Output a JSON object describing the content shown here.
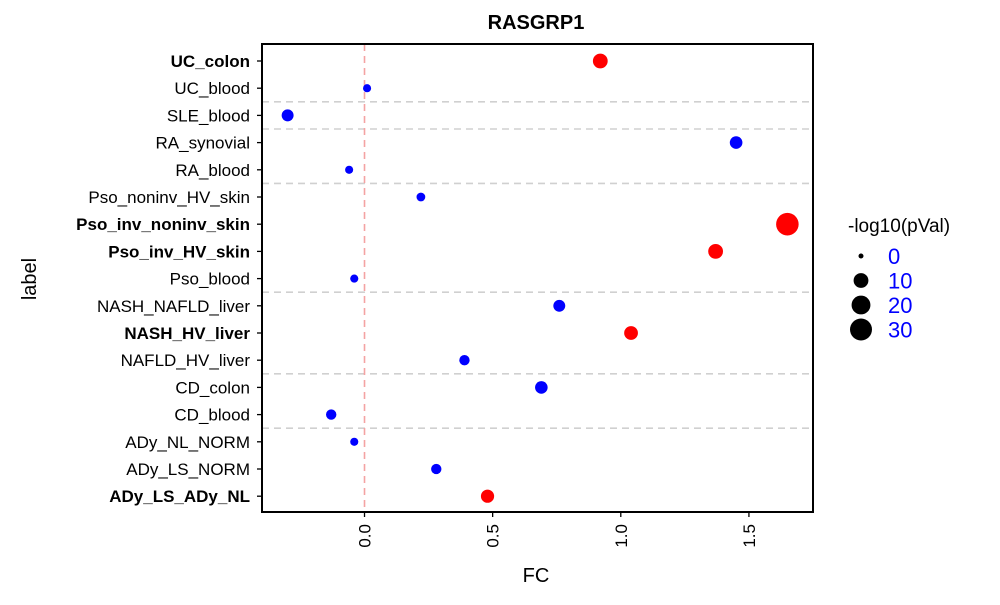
{
  "chart_data": {
    "type": "scatter",
    "title": "RASGRP1",
    "xlabel": "FC",
    "ylabel": "label",
    "xlim": [
      -0.4,
      1.75
    ],
    "x_ticks": [
      0.0,
      0.5,
      1.0,
      1.5
    ],
    "x_tick_labels": [
      "0.0",
      "0.5",
      "1.0",
      "1.5"
    ],
    "reference_line": {
      "x": 0,
      "color": "#f4a3a3",
      "style": "dashed"
    },
    "group_separators_after": [
      "UC_blood",
      "SLE_blood",
      "RA_blood",
      "Pso_blood",
      "NAFLD_HV_liver",
      "CD_blood"
    ],
    "colors": {
      "significant": "#ff0000",
      "not_significant": "#0000ff"
    },
    "legend": {
      "title": "-log10(pVal)",
      "placement": "right",
      "entries": [
        {
          "label": "0",
          "value": 0
        },
        {
          "label": "10",
          "value": 10
        },
        {
          "label": "20",
          "value": 20
        },
        {
          "label": "30",
          "value": 30
        }
      ]
    },
    "points": [
      {
        "label": "UC_colon",
        "fc": 0.92,
        "neglog10p": 10,
        "significant": true,
        "bold": true
      },
      {
        "label": "UC_blood",
        "fc": 0.01,
        "neglog10p": 1,
        "significant": false,
        "bold": false
      },
      {
        "label": "SLE_blood",
        "fc": -0.3,
        "neglog10p": 5,
        "significant": false,
        "bold": false
      },
      {
        "label": "RA_synovial",
        "fc": 1.45,
        "neglog10p": 6,
        "significant": false,
        "bold": false
      },
      {
        "label": "RA_blood",
        "fc": -0.06,
        "neglog10p": 1,
        "significant": false,
        "bold": false
      },
      {
        "label": "Pso_noninv_HV_skin",
        "fc": 0.22,
        "neglog10p": 1.5,
        "significant": false,
        "bold": false
      },
      {
        "label": "Pso_inv_noninv_skin",
        "fc": 1.65,
        "neglog10p": 32,
        "significant": true,
        "bold": true
      },
      {
        "label": "Pso_inv_HV_skin",
        "fc": 1.37,
        "neglog10p": 10,
        "significant": true,
        "bold": true
      },
      {
        "label": "Pso_blood",
        "fc": -0.04,
        "neglog10p": 1,
        "significant": false,
        "bold": false
      },
      {
        "label": "NASH_NAFLD_liver",
        "fc": 0.76,
        "neglog10p": 5,
        "significant": false,
        "bold": false
      },
      {
        "label": "NASH_HV_liver",
        "fc": 1.04,
        "neglog10p": 8,
        "significant": true,
        "bold": true
      },
      {
        "label": "NAFLD_HV_liver",
        "fc": 0.39,
        "neglog10p": 3,
        "significant": false,
        "bold": false
      },
      {
        "label": "CD_colon",
        "fc": 0.69,
        "neglog10p": 6,
        "significant": false,
        "bold": false
      },
      {
        "label": "CD_blood",
        "fc": -0.13,
        "neglog10p": 3,
        "significant": false,
        "bold": false
      },
      {
        "label": "ADy_NL_NORM",
        "fc": -0.04,
        "neglog10p": 1,
        "significant": false,
        "bold": false
      },
      {
        "label": "ADy_LS_NORM",
        "fc": 0.28,
        "neglog10p": 3,
        "significant": false,
        "bold": false
      },
      {
        "label": "ADy_LS_ADy_NL",
        "fc": 0.48,
        "neglog10p": 7,
        "significant": true,
        "bold": true
      }
    ]
  }
}
